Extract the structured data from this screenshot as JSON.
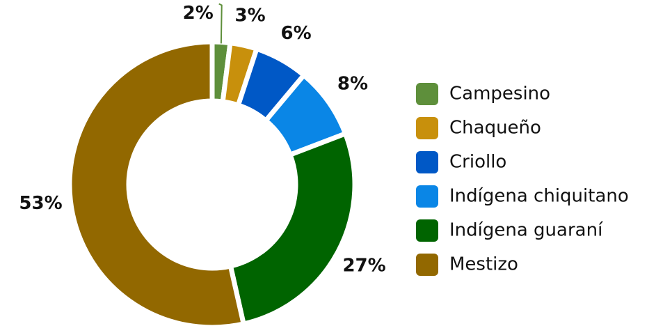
{
  "chart_data": {
    "type": "donut",
    "categories": [
      "Campesino",
      "Chaqueño",
      "Criollo",
      "Indígena chiquitano",
      "Indígena guaraní",
      "Mestizo"
    ],
    "values": [
      2,
      3,
      6,
      8,
      27,
      53
    ],
    "value_labels": [
      "2%",
      "3%",
      "6%",
      "8%",
      "27%",
      "53%"
    ],
    "colors": [
      "#5e8f3b",
      "#c8900c",
      "#0058c6",
      "#0a86e6",
      "#006400",
      "#926800"
    ],
    "legend": "right"
  }
}
